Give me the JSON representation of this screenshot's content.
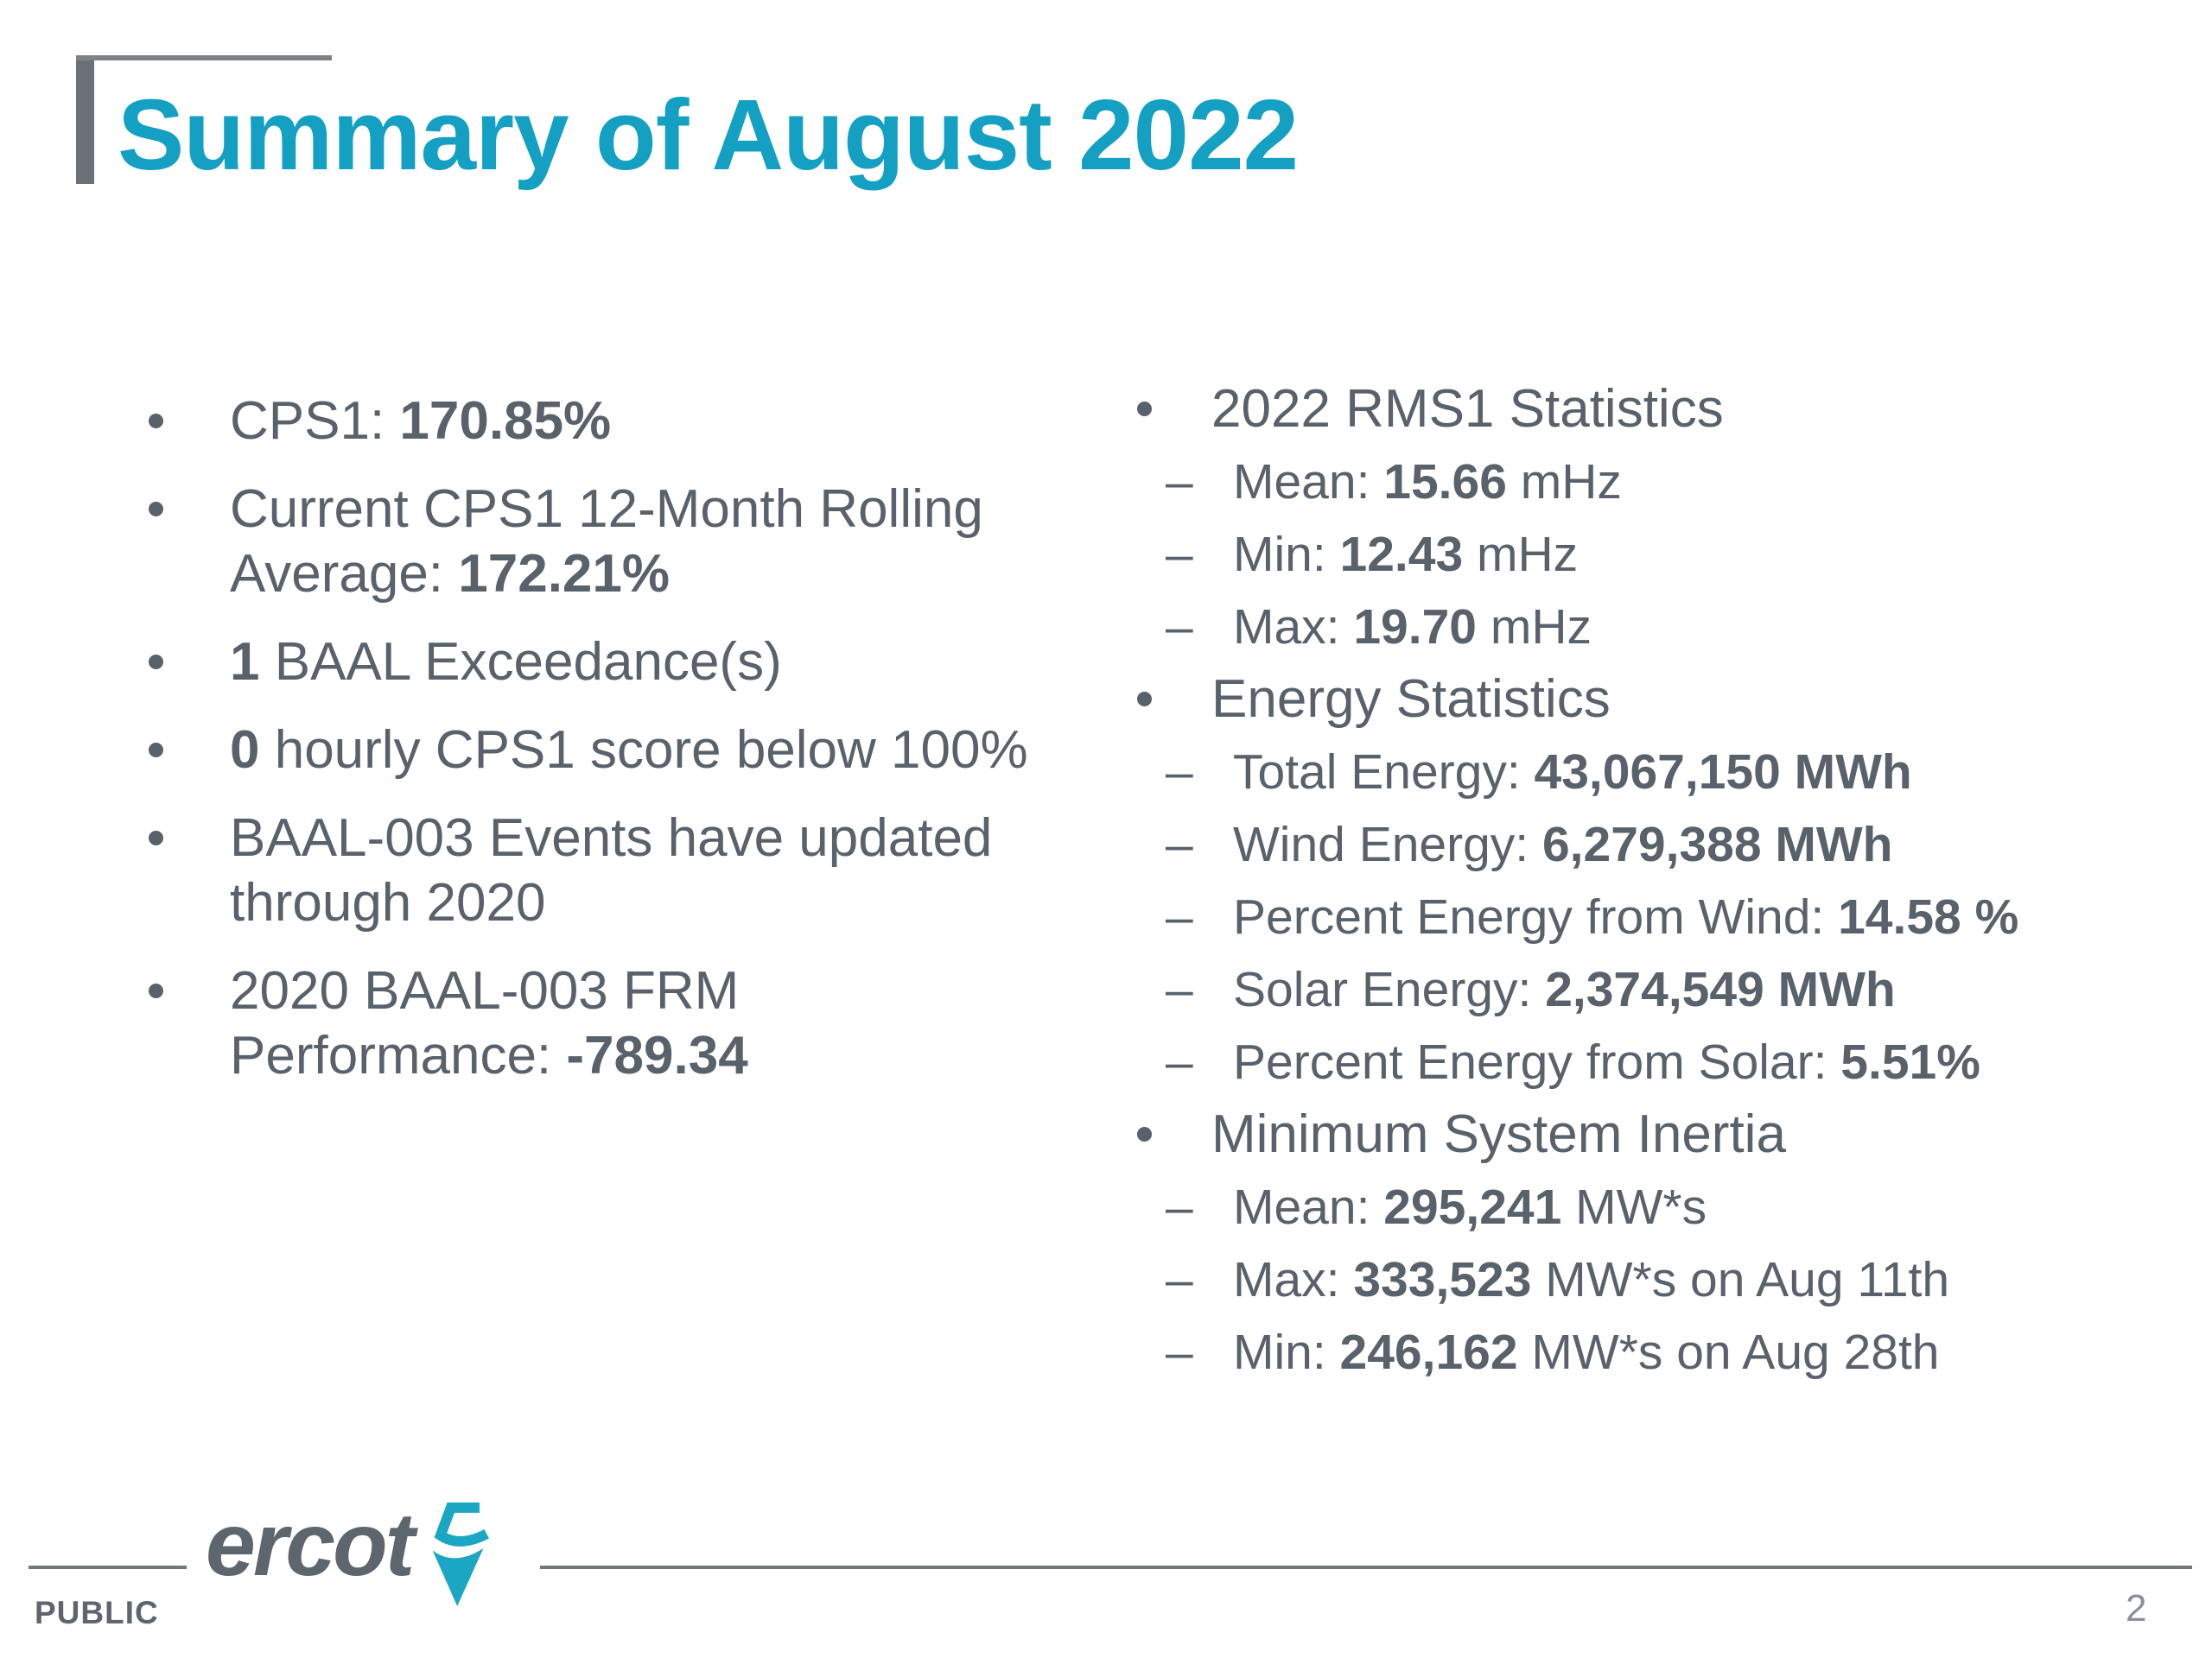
{
  "title": "Summary of August 2022",
  "colors": {
    "accent_teal": "#14A0C2",
    "text_gray": "#59616A"
  },
  "left_column": {
    "items": [
      {
        "segments": [
          [
            "CPS1: ",
            0
          ],
          [
            "170.85%",
            1
          ]
        ]
      },
      {
        "segments": [
          [
            "Current CPS1 12-Month Rolling Average: ",
            0
          ],
          [
            "172.21%",
            1
          ]
        ]
      },
      {
        "segments": [
          [
            "1",
            1
          ],
          [
            " BAAL Exceedance(s)",
            0
          ]
        ]
      },
      {
        "segments": [
          [
            "0",
            1
          ],
          [
            " hourly CPS1 score below 100%",
            0
          ]
        ]
      },
      {
        "segments": [
          [
            "BAAL-003 Events have updated through 2020",
            0
          ]
        ]
      },
      {
        "segments": [
          [
            "2020 BAAL-003 FRM Performance: ",
            0
          ],
          [
            "-789.34",
            1
          ]
        ]
      }
    ]
  },
  "right_column": {
    "dash_glyph": "–",
    "groups": [
      {
        "title": "2022 RMS1 Statistics",
        "items": [
          {
            "segments": [
              [
                "Mean: ",
                0
              ],
              [
                "15.66",
                1
              ],
              [
                " mHz",
                0
              ]
            ]
          },
          {
            "segments": [
              [
                "Min: ",
                0
              ],
              [
                "12.43",
                1
              ],
              [
                " mHz",
                0
              ]
            ]
          },
          {
            "segments": [
              [
                "Max: ",
                0
              ],
              [
                "19.70",
                1
              ],
              [
                " mHz",
                0
              ]
            ]
          }
        ]
      },
      {
        "title": "Energy Statistics",
        "items": [
          {
            "segments": [
              [
                "Total Energy: ",
                0
              ],
              [
                "43,067,150 MWh",
                1
              ]
            ]
          },
          {
            "segments": [
              [
                "Wind Energy: ",
                0
              ],
              [
                "6,279,388 MWh",
                1
              ]
            ]
          },
          {
            "segments": [
              [
                "Percent Energy from Wind: ",
                0
              ],
              [
                "14.58 %",
                1
              ]
            ]
          },
          {
            "segments": [
              [
                "Solar Energy: ",
                0
              ],
              [
                "2,374,549 MWh",
                1
              ]
            ]
          },
          {
            "segments": [
              [
                "Percent Energy from Solar: ",
                0
              ],
              [
                "5.51%",
                1
              ]
            ]
          }
        ]
      },
      {
        "title": "Minimum System Inertia",
        "items": [
          {
            "segments": [
              [
                "Mean: ",
                0
              ],
              [
                "295,241",
                1
              ],
              [
                " MW*s",
                0
              ]
            ]
          },
          {
            "segments": [
              [
                "Max: ",
                0
              ],
              [
                "333,523",
                1
              ],
              [
                " MW*s on Aug 11th",
                0
              ]
            ]
          },
          {
            "segments": [
              [
                "Min: ",
                0
              ],
              [
                "246,162",
                1
              ],
              [
                " MW*s on Aug 28th",
                0
              ]
            ]
          }
        ]
      }
    ]
  },
  "footer": {
    "classification": "PUBLIC",
    "logo_text": "ercot",
    "page_number": "2"
  }
}
